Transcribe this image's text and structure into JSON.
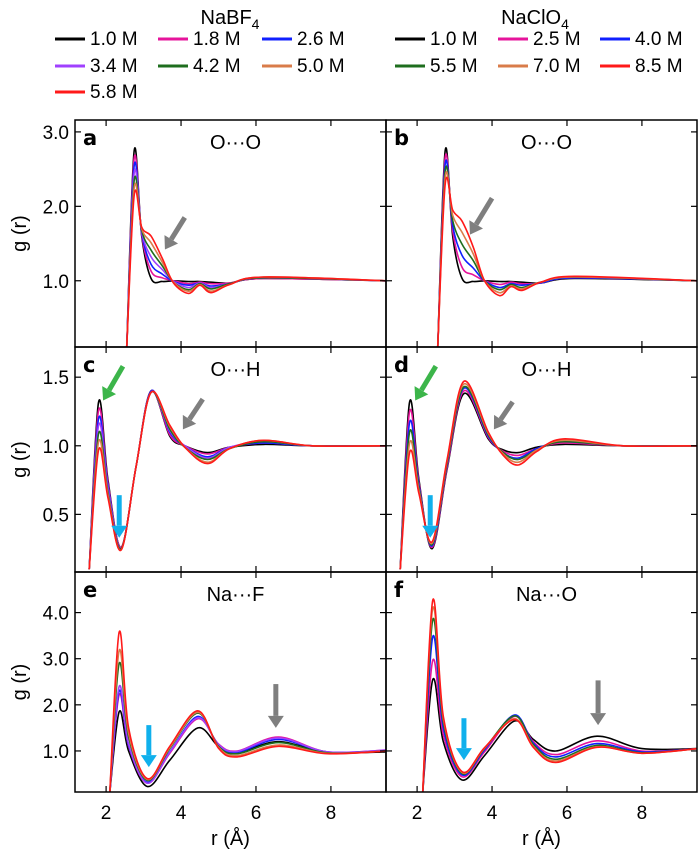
{
  "legend_groups": [
    {
      "title": "NaBF",
      "title_sub": "4",
      "entries": [
        {
          "label": "1.0 M",
          "color": "#000000"
        },
        {
          "label": "1.8 M",
          "color": "#e6149b"
        },
        {
          "label": "2.6 M",
          "color": "#1020ff"
        },
        {
          "label": "3.4 M",
          "color": "#a040ff"
        },
        {
          "label": "4.2 M",
          "color": "#1e6e1e"
        },
        {
          "label": "5.0 M",
          "color": "#d97c4a"
        },
        {
          "label": "5.8 M",
          "color": "#ff1a1a"
        }
      ]
    },
    {
      "title": "NaClO",
      "title_sub": "4",
      "entries": [
        {
          "label": "1.0 M",
          "color": "#000000"
        },
        {
          "label": "2.5 M",
          "color": "#e6149b"
        },
        {
          "label": "4.0 M",
          "color": "#1020ff"
        },
        {
          "label": "5.5 M",
          "color": "#1e6e1e"
        },
        {
          "label": "7.0 M",
          "color": "#d97c4a"
        },
        {
          "label": "8.5 M",
          "color": "#ff1a1a"
        }
      ]
    }
  ],
  "arrow_colors": {
    "gray": "#7f7f7f",
    "green": "#3cb54a",
    "cyan": "#10b0ec"
  },
  "chart_data": [
    {
      "type": "line",
      "panel": "a",
      "title": "O···O",
      "group": 0,
      "xlabel": "",
      "ylabel": "g (r)",
      "xlim": [
        1.17,
        9.47
      ],
      "ylim": [
        0.11,
        3.16
      ],
      "xticks": [
        2,
        4,
        6,
        8
      ],
      "yticks": [
        1.0,
        2.0,
        3.0
      ],
      "ytick_labels": [
        "1.0",
        "2.0",
        "3.0"
      ],
      "x": [
        2.55,
        2.75,
        2.95,
        3.2,
        3.5,
        3.8,
        4.2,
        4.5,
        4.8,
        5.3,
        6.2,
        9.5
      ],
      "series": [
        {
          "name": "1.0 M",
          "values": [
            0.1,
            2.75,
            1.6,
            1.03,
            0.99,
            1.0,
            0.99,
            0.99,
            0.98,
            0.97,
            1.03,
            1.0
          ]
        },
        {
          "name": "1.8 M",
          "values": [
            0.1,
            2.65,
            1.62,
            1.13,
            1.04,
            1.0,
            0.96,
            0.98,
            0.96,
            0.97,
            1.03,
            1.0
          ]
        },
        {
          "name": "2.6 M",
          "values": [
            0.1,
            2.55,
            1.64,
            1.22,
            1.09,
            0.99,
            0.94,
            0.97,
            0.93,
            0.96,
            1.04,
            1.0
          ]
        },
        {
          "name": "3.4 M",
          "values": [
            0.1,
            2.45,
            1.66,
            1.32,
            1.15,
            0.99,
            0.91,
            0.97,
            0.91,
            0.96,
            1.04,
            1.0
          ]
        },
        {
          "name": "4.2 M",
          "values": [
            0.1,
            2.35,
            1.68,
            1.41,
            1.2,
            0.98,
            0.88,
            0.96,
            0.89,
            0.96,
            1.04,
            1.0
          ]
        },
        {
          "name": "5.0 M",
          "values": [
            0.1,
            2.25,
            1.7,
            1.51,
            1.25,
            0.98,
            0.86,
            0.95,
            0.86,
            0.95,
            1.05,
            1.0
          ]
        },
        {
          "name": "5.8 M",
          "values": [
            0.1,
            2.15,
            1.72,
            1.6,
            1.3,
            0.97,
            0.83,
            0.94,
            0.84,
            0.95,
            1.05,
            1.0
          ]
        }
      ],
      "arrows": [
        {
          "color": "gray",
          "from": [
            4.1,
            1.85
          ],
          "to": [
            3.57,
            1.42
          ]
        }
      ]
    },
    {
      "type": "line",
      "panel": "b",
      "title": "O···O",
      "group": 1,
      "xlabel": "",
      "ylabel": "",
      "xlim": [
        1.17,
        9.47
      ],
      "ylim": [
        0.11,
        3.16
      ],
      "xticks": [
        2,
        4,
        6,
        8
      ],
      "yticks": [
        1.0,
        2.0,
        3.0
      ],
      "ytick_labels": [],
      "x": [
        2.55,
        2.75,
        2.95,
        3.2,
        3.5,
        3.8,
        4.2,
        4.5,
        4.8,
        5.3,
        6.2,
        9.5
      ],
      "series": [
        {
          "name": "1.0 M",
          "values": [
            0.1,
            2.75,
            1.6,
            1.03,
            0.99,
            1.0,
            0.99,
            0.99,
            0.98,
            0.97,
            1.03,
            1.0
          ]
        },
        {
          "name": "2.5 M",
          "values": [
            0.1,
            2.66,
            1.67,
            1.18,
            1.08,
            1.0,
            0.95,
            0.98,
            0.96,
            0.97,
            1.04,
            1.0
          ]
        },
        {
          "name": "4.0 M",
          "values": [
            0.1,
            2.57,
            1.74,
            1.34,
            1.17,
            1.0,
            0.91,
            0.96,
            0.94,
            0.97,
            1.04,
            1.0
          ]
        },
        {
          "name": "5.5 M",
          "values": [
            0.1,
            2.48,
            1.81,
            1.49,
            1.27,
            1.0,
            0.88,
            0.95,
            0.91,
            0.98,
            1.05,
            1.0
          ]
        },
        {
          "name": "7.0 M",
          "values": [
            0.1,
            2.39,
            1.88,
            1.65,
            1.36,
            1.0,
            0.84,
            0.93,
            0.89,
            0.98,
            1.05,
            1.0
          ]
        },
        {
          "name": "8.5 M",
          "values": [
            0.1,
            2.3,
            1.95,
            1.8,
            1.45,
            1.0,
            0.8,
            0.92,
            0.87,
            0.98,
            1.06,
            1.0
          ]
        }
      ],
      "arrows": [
        {
          "color": "gray",
          "from": [
            4.0,
            2.11
          ],
          "to": [
            3.41,
            1.62
          ]
        }
      ]
    },
    {
      "type": "line",
      "panel": "c",
      "title": "O···H",
      "group": 0,
      "xlabel": "",
      "ylabel": "g (r)",
      "xlim": [
        1.17,
        9.47
      ],
      "ylim": [
        0.08,
        1.72
      ],
      "xticks": [
        2,
        4,
        6,
        8
      ],
      "yticks": [
        0.5,
        1.0,
        1.5
      ],
      "ytick_labels": [
        "0.5",
        "1.0",
        "1.5"
      ],
      "x": [
        1.55,
        1.8,
        2.05,
        2.4,
        2.8,
        3.2,
        3.7,
        4.1,
        4.7,
        5.3,
        6.2,
        7.5,
        9.5
      ],
      "series": [
        {
          "name": "1.0 M",
          "values": [
            0.1,
            1.32,
            0.75,
            0.26,
            0.85,
            1.4,
            1.07,
            1.0,
            0.95,
            0.99,
            1.01,
            1.0,
            1.0
          ]
        },
        {
          "name": "1.8 M",
          "values": [
            0.1,
            1.26,
            0.73,
            0.26,
            0.85,
            1.4,
            1.08,
            1.0,
            0.94,
            0.99,
            1.02,
            1.0,
            1.0
          ]
        },
        {
          "name": "2.6 M",
          "values": [
            0.1,
            1.2,
            0.71,
            0.25,
            0.85,
            1.4,
            1.1,
            1.0,
            0.92,
            0.99,
            1.02,
            1.0,
            1.0
          ]
        },
        {
          "name": "3.4 M",
          "values": [
            0.1,
            1.15,
            0.69,
            0.25,
            0.85,
            1.39,
            1.11,
            1.0,
            0.91,
            0.99,
            1.03,
            1.0,
            1.0
          ]
        },
        {
          "name": "4.2 M",
          "values": [
            0.1,
            1.09,
            0.66,
            0.25,
            0.85,
            1.39,
            1.12,
            0.99,
            0.9,
            0.98,
            1.03,
            1.0,
            1.0
          ]
        },
        {
          "name": "5.0 M",
          "values": [
            0.1,
            1.03,
            0.64,
            0.24,
            0.85,
            1.39,
            1.14,
            0.99,
            0.88,
            0.98,
            1.04,
            1.0,
            1.0
          ]
        },
        {
          "name": "5.8 M",
          "values": [
            0.1,
            0.97,
            0.62,
            0.24,
            0.85,
            1.39,
            1.15,
            0.99,
            0.87,
            0.98,
            1.04,
            1.0,
            1.0
          ]
        }
      ],
      "arrows": [
        {
          "color": "green",
          "from": [
            2.45,
            1.58
          ],
          "to": [
            1.92,
            1.33
          ]
        },
        {
          "color": "gray",
          "from": [
            4.58,
            1.34
          ],
          "to": [
            4.05,
            1.12
          ]
        },
        {
          "color": "cyan",
          "from": [
            2.35,
            0.64
          ],
          "to": [
            2.35,
            0.33
          ]
        }
      ]
    },
    {
      "type": "line",
      "panel": "d",
      "title": "O···H",
      "group": 1,
      "xlabel": "",
      "ylabel": "",
      "xlim": [
        1.17,
        9.47
      ],
      "ylim": [
        0.08,
        1.72
      ],
      "xticks": [
        2,
        4,
        6,
        8
      ],
      "yticks": [
        0.5,
        1.0,
        1.5
      ],
      "ytick_labels": [],
      "x": [
        1.55,
        1.8,
        2.05,
        2.4,
        2.8,
        3.25,
        3.9,
        4.3,
        4.7,
        5.2,
        5.9,
        7.5,
        9.5
      ],
      "series": [
        {
          "name": "1.0 M",
          "values": [
            0.1,
            1.32,
            0.75,
            0.25,
            0.83,
            1.38,
            1.05,
            0.97,
            0.95,
            0.99,
            1.01,
            1.0,
            1.0
          ]
        },
        {
          "name": "2.5 M",
          "values": [
            0.1,
            1.25,
            0.73,
            0.26,
            0.84,
            1.4,
            1.06,
            0.96,
            0.93,
            0.98,
            1.02,
            1.0,
            1.0
          ]
        },
        {
          "name": "4.0 M",
          "values": [
            0.1,
            1.17,
            0.71,
            0.27,
            0.86,
            1.42,
            1.07,
            0.95,
            0.91,
            0.98,
            1.03,
            1.0,
            1.0
          ]
        },
        {
          "name": "5.5 M",
          "values": [
            0.1,
            1.1,
            0.69,
            0.28,
            0.87,
            1.43,
            1.08,
            0.95,
            0.9,
            0.97,
            1.03,
            1.0,
            1.0
          ]
        },
        {
          "name": "7.0 M",
          "values": [
            0.1,
            1.02,
            0.67,
            0.29,
            0.89,
            1.45,
            1.09,
            0.94,
            0.88,
            0.97,
            1.04,
            1.0,
            1.0
          ]
        },
        {
          "name": "8.5 M",
          "values": [
            0.1,
            0.95,
            0.65,
            0.3,
            0.9,
            1.47,
            1.1,
            0.93,
            0.86,
            0.96,
            1.05,
            1.0,
            1.0
          ]
        }
      ],
      "arrows": [
        {
          "color": "green",
          "from": [
            2.5,
            1.58
          ],
          "to": [
            1.95,
            1.33
          ]
        },
        {
          "color": "gray",
          "from": [
            4.55,
            1.32
          ],
          "to": [
            4.05,
            1.12
          ]
        },
        {
          "color": "cyan",
          "from": [
            2.35,
            0.64
          ],
          "to": [
            2.35,
            0.33
          ]
        }
      ]
    },
    {
      "type": "line",
      "panel": "e",
      "title": "Na···F",
      "group": 0,
      "xlabel": "r (Å)",
      "ylabel": "g (r)",
      "xlim": [
        1.17,
        9.47
      ],
      "ylim": [
        0.11,
        4.88
      ],
      "xticks": [
        2,
        4,
        6,
        8
      ],
      "xtick_labels": [
        "2",
        "4",
        "6",
        "8"
      ],
      "yticks": [
        1.0,
        2.0,
        3.0,
        4.0
      ],
      "ytick_labels": [
        "1.0",
        "2.0",
        "3.0",
        "4.0"
      ],
      "x": [
        2.1,
        2.35,
        2.6,
        3.1,
        3.7,
        4.45,
        5.0,
        5.5,
        6.6,
        7.9,
        9.5
      ],
      "series": [
        {
          "name": "1.0 M",
          "values": [
            0.1,
            1.85,
            1.0,
            0.23,
            0.8,
            1.5,
            1.1,
            0.97,
            1.2,
            0.97,
            0.98
          ]
        },
        {
          "name": "1.8 M",
          "values": [
            0.1,
            2.22,
            1.1,
            0.3,
            0.95,
            1.7,
            1.15,
            1.0,
            1.3,
            0.98,
            1.02
          ]
        },
        {
          "name": "2.6 M",
          "values": [
            0.1,
            2.3,
            1.12,
            0.32,
            0.98,
            1.75,
            1.12,
            0.97,
            1.25,
            0.98,
            1.01
          ]
        },
        {
          "name": "3.4 M",
          "values": [
            0.1,
            2.4,
            1.15,
            0.3,
            0.97,
            1.72,
            1.14,
            0.99,
            1.28,
            0.98,
            1.02
          ]
        },
        {
          "name": "4.2 M",
          "values": [
            0.1,
            2.9,
            1.3,
            0.36,
            1.05,
            1.82,
            1.1,
            0.94,
            1.18,
            0.96,
            1.0
          ]
        },
        {
          "name": "5.0 M",
          "values": [
            0.1,
            3.18,
            1.38,
            0.38,
            1.07,
            1.84,
            1.08,
            0.9,
            1.13,
            0.95,
            1.0
          ]
        },
        {
          "name": "5.8 M",
          "values": [
            0.1,
            3.58,
            1.5,
            0.4,
            1.1,
            1.87,
            1.06,
            0.87,
            1.1,
            0.94,
            1.0
          ]
        }
      ],
      "arrows": [
        {
          "color": "cyan",
          "from": [
            3.14,
            1.56
          ],
          "to": [
            3.14,
            0.65
          ]
        },
        {
          "color": "gray",
          "from": [
            6.53,
            2.45
          ],
          "to": [
            6.53,
            1.5
          ]
        }
      ]
    },
    {
      "type": "line",
      "panel": "f",
      "title": "Na···O",
      "group": 1,
      "xlabel": "r (Å)",
      "ylabel": "",
      "xlim": [
        1.17,
        9.47
      ],
      "ylim": [
        0.11,
        4.88
      ],
      "xticks": [
        2,
        4,
        6,
        8
      ],
      "xtick_labels": [
        "2",
        "4",
        "6",
        "8"
      ],
      "yticks": [
        1.0,
        2.0,
        3.0,
        4.0
      ],
      "ytick_labels": [],
      "x": [
        2.15,
        2.42,
        2.7,
        3.2,
        3.8,
        4.6,
        5.1,
        5.7,
        6.8,
        8.0,
        9.5
      ],
      "series": [
        {
          "name": "1.0 M",
          "values": [
            0.1,
            2.55,
            1.2,
            0.37,
            0.9,
            1.65,
            1.25,
            1.0,
            1.32,
            1.05,
            1.05
          ]
        },
        {
          "name": "2.5 M",
          "values": [
            0.1,
            2.97,
            1.35,
            0.44,
            0.98,
            1.75,
            1.2,
            0.92,
            1.22,
            1.0,
            1.05
          ]
        },
        {
          "name": "4.0 M",
          "values": [
            0.1,
            3.48,
            1.5,
            0.48,
            1.02,
            1.78,
            1.17,
            0.87,
            1.16,
            0.98,
            1.05
          ]
        },
        {
          "name": "5.5 M",
          "values": [
            0.1,
            3.85,
            1.62,
            0.51,
            1.05,
            1.76,
            1.14,
            0.82,
            1.12,
            0.96,
            1.05
          ]
        },
        {
          "name": "7.0 M",
          "values": [
            0.1,
            4.1,
            1.7,
            0.53,
            1.06,
            1.7,
            1.1,
            0.78,
            1.09,
            0.95,
            1.05
          ]
        },
        {
          "name": "8.5 M",
          "values": [
            0.1,
            4.27,
            1.75,
            0.55,
            1.07,
            1.68,
            1.08,
            0.75,
            1.08,
            0.95,
            1.05
          ]
        }
      ],
      "arrows": [
        {
          "color": "cyan",
          "from": [
            3.25,
            1.71
          ],
          "to": [
            3.25,
            0.8
          ]
        },
        {
          "color": "gray",
          "from": [
            6.83,
            2.53
          ],
          "to": [
            6.83,
            1.56
          ]
        }
      ]
    }
  ]
}
